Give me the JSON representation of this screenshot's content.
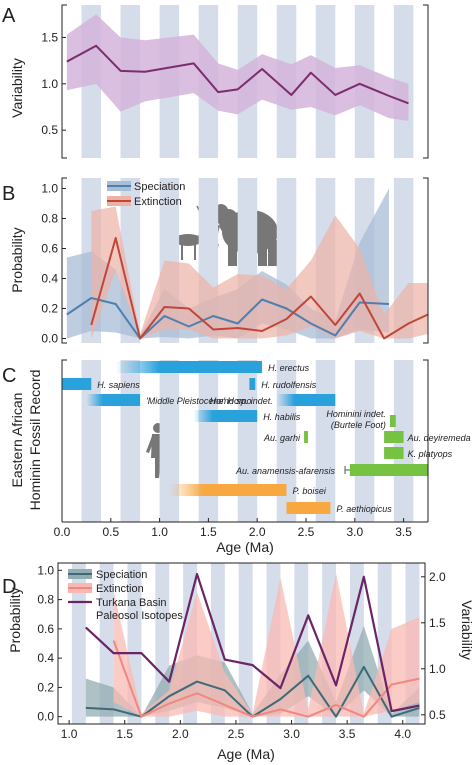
{
  "panels": {
    "a": "A",
    "b": "B",
    "c": "C",
    "d": "D"
  },
  "labels": {
    "variability": "Variability",
    "probability": "Probability",
    "fossil_record": [
      "Eastern African",
      "Hominin Fossil Record"
    ],
    "age": "Age (Ma)"
  },
  "colors": {
    "purple": "#7d2c6e",
    "purple_band": "#d4b4da",
    "blue": "#4f7fae",
    "blue_band": "#a8bed6",
    "red": "#c0463a",
    "red_band": "#ecb2a6",
    "bar_blue": "#29a2dc",
    "bar_green": "#76c242",
    "bar_orange": "#f7a840",
    "stripe": "#d5dcea",
    "d_spec": "#3d6a78",
    "d_spec_band": "#93acb0",
    "d_ext": "#f2877f",
    "d_ext_band": "#f9b9b3",
    "d_turk": "#6b2465"
  },
  "chart_data": [
    {
      "panel": "A",
      "type": "line",
      "ylabel": "Variability",
      "xlim": [
        0,
        3.75
      ],
      "ylim": [
        0.2,
        1.85
      ],
      "yticks": [
        "0.5",
        "1.0",
        "1.5"
      ],
      "x": [
        0.05,
        0.35,
        0.6,
        0.85,
        1.35,
        1.6,
        1.8,
        2.05,
        2.35,
        2.55,
        2.8,
        3.05,
        3.35,
        3.55
      ],
      "series": [
        {
          "values": [
            1.24,
            1.41,
            1.14,
            1.13,
            1.22,
            0.91,
            0.94,
            1.16,
            0.88,
            1.12,
            0.88,
            1.0,
            0.87,
            0.79
          ],
          "lower": [
            0.93,
            1.0,
            0.7,
            0.81,
            0.9,
            0.71,
            0.67,
            0.83,
            0.72,
            0.75,
            0.66,
            0.77,
            0.63,
            0.6
          ],
          "upper": [
            1.53,
            1.75,
            1.5,
            1.47,
            1.53,
            1.22,
            1.15,
            1.32,
            1.21,
            1.31,
            1.17,
            1.2,
            1.07,
            1.0
          ]
        }
      ],
      "grid": "vertical bands"
    },
    {
      "panel": "B",
      "type": "line",
      "ylabel": "Probability",
      "xlim": [
        0,
        3.75
      ],
      "ylim": [
        -0.03,
        1.07
      ],
      "yticks": [
        "0.0",
        "0.2",
        "0.4",
        "0.6",
        "0.8",
        "1.0"
      ],
      "legend_position": "top-left",
      "series": [
        {
          "name": "Speciation",
          "x": [
            0.05,
            0.3,
            0.55,
            0.8,
            1.05,
            1.3,
            1.55,
            1.8,
            2.05,
            2.3,
            2.55,
            2.8,
            3.05,
            3.35
          ],
          "values": [
            0.16,
            0.27,
            0.23,
            0.0,
            0.15,
            0.08,
            0.15,
            0.1,
            0.26,
            0.2,
            0.1,
            0.02,
            0.24,
            0.23
          ],
          "lower": [
            0.0,
            0.05,
            0.04,
            0.0,
            0.01,
            0.0,
            0.02,
            0.0,
            0.1,
            0.06,
            0.0,
            0.0,
            0.06,
            0.04
          ],
          "upper": [
            0.54,
            0.58,
            0.46,
            0.02,
            0.33,
            0.2,
            0.27,
            0.33,
            0.45,
            0.36,
            0.2,
            0.12,
            0.64,
            1.0
          ]
        },
        {
          "name": "Extinction",
          "x": [
            0.3,
            0.55,
            0.8,
            1.05,
            1.3,
            1.55,
            1.8,
            2.05,
            2.3,
            2.55,
            2.8,
            3.05,
            3.3,
            3.55,
            3.75
          ],
          "values": [
            0.09,
            0.67,
            0.0,
            0.21,
            0.2,
            0.06,
            0.07,
            0.05,
            0.13,
            0.28,
            0.09,
            0.3,
            0.0,
            0.1,
            0.16
          ],
          "lower": [
            0.0,
            0.45,
            0.0,
            0.06,
            0.06,
            0.0,
            0.0,
            0.0,
            0.02,
            0.08,
            0.0,
            0.05,
            0.0,
            0.0,
            0.03
          ],
          "upper": [
            0.85,
            0.88,
            0.03,
            0.52,
            0.5,
            0.34,
            0.43,
            0.42,
            0.33,
            0.52,
            0.82,
            0.6,
            0.16,
            0.37,
            0.37
          ]
        }
      ],
      "grid": "vertical bands"
    },
    {
      "panel": "C",
      "type": "timeline",
      "ylabel": "Eastern African Hominin Fossil Record",
      "xlabel": "Age (Ma)",
      "xlim": [
        0,
        3.75
      ],
      "xticks": [
        "0.0",
        "0.5",
        "1.0",
        "1.5",
        "2.0",
        "2.5",
        "3.0",
        "3.5"
      ],
      "taxa": [
        {
          "name": "H. erectus",
          "start": 0.55,
          "end": 2.05,
          "color": "blue",
          "fade_start": true
        },
        {
          "name": "H. sapiens",
          "start": 0.0,
          "end": 0.3,
          "color": "blue"
        },
        {
          "name": "H. rudolfensis",
          "start": 1.92,
          "end": 1.98,
          "color": "blue"
        },
        {
          "name": "'Middle Pleistocene' Homo",
          "start": 0.25,
          "end": 0.8,
          "color": "blue",
          "fade_start": true
        },
        {
          "name": "Homo sp. indet.",
          "start": 2.2,
          "end": 2.8,
          "color": "blue",
          "fade_start": true
        },
        {
          "name": "H. habilis",
          "start": 1.35,
          "end": 2.0,
          "color": "blue",
          "fade_start": true
        },
        {
          "name": "Hominini indet. (Burtele Foot)",
          "start": 3.36,
          "end": 3.42,
          "color": "green"
        },
        {
          "name": "Au. garhi",
          "start": 2.48,
          "end": 2.52,
          "color": "green"
        },
        {
          "name": "Au. deyiremeda",
          "start": 3.3,
          "end": 3.5,
          "color": "green"
        },
        {
          "name": "K. platyops",
          "start": 3.3,
          "end": 3.5,
          "color": "green"
        },
        {
          "name": "Au. anamensis-afarensis",
          "start": 2.95,
          "end": 3.75,
          "color": "green",
          "bracket_start": 2.9
        },
        {
          "name": "P. boisei",
          "start": 1.1,
          "end": 2.3,
          "color": "orange",
          "fade_start": true
        },
        {
          "name": "P. aethiopicus",
          "start": 2.3,
          "end": 2.75,
          "color": "orange"
        }
      ]
    },
    {
      "panel": "D",
      "type": "line",
      "ylabel": "Probability",
      "y2label": "Variability",
      "xlabel": "Age (Ma)",
      "xlim": [
        0.9,
        4.2
      ],
      "xticks": [
        "1.0",
        "1.5",
        "2.0",
        "2.5",
        "3.0",
        "3.5",
        "4.0"
      ],
      "ylim": [
        -0.05,
        1.05
      ],
      "yticks": [
        "0.0",
        "0.2",
        "0.4",
        "0.6",
        "0.8",
        "1.0"
      ],
      "y2lim": [
        0.4,
        2.15
      ],
      "y2ticks": [
        "0.5",
        "1.0",
        "1.5",
        "2.0"
      ],
      "legend_position": "top-left",
      "series": [
        {
          "name": "Speciation",
          "axis": "left",
          "x": [
            1.15,
            1.4,
            1.65,
            1.9,
            2.15,
            2.4,
            2.65,
            2.9,
            3.15,
            3.4,
            3.65,
            3.9,
            4.15
          ],
          "values": [
            0.06,
            0.05,
            0.0,
            0.14,
            0.24,
            0.18,
            0.0,
            0.12,
            0.28,
            0.0,
            0.34,
            0.0,
            0.06
          ],
          "lower": [
            0.0,
            0.0,
            0.0,
            0.04,
            0.1,
            0.06,
            0.0,
            0.02,
            0.14,
            0.0,
            0.18,
            0.0,
            0.0
          ],
          "upper": [
            0.26,
            0.2,
            0.0,
            0.35,
            0.42,
            0.37,
            0.02,
            0.29,
            0.52,
            0.1,
            0.62,
            0.02,
            0.2
          ]
        },
        {
          "name": "Extinction",
          "axis": "left",
          "x": [
            1.4,
            1.65,
            1.9,
            2.15,
            2.4,
            2.65,
            2.9,
            3.15,
            3.4,
            3.65,
            3.9,
            4.15
          ],
          "values": [
            0.52,
            0.0,
            0.09,
            0.16,
            0.08,
            0.0,
            0.05,
            0.0,
            0.08,
            0.0,
            0.22,
            0.26
          ],
          "lower": [
            0.1,
            0.0,
            0.0,
            0.04,
            0.0,
            0.0,
            0.0,
            0.0,
            0.0,
            0.0,
            0.04,
            0.1
          ],
          "upper": [
            0.86,
            0.02,
            0.18,
            0.85,
            0.3,
            0.02,
            0.95,
            0.05,
            0.98,
            0.02,
            0.6,
            0.68
          ]
        },
        {
          "name": "Turkana Basin Paleosol Isotopes",
          "axis": "right",
          "x": [
            1.15,
            1.4,
            1.65,
            1.9,
            2.15,
            2.4,
            2.65,
            2.9,
            3.15,
            3.4,
            3.65,
            3.9,
            4.15
          ],
          "values": [
            1.45,
            1.17,
            1.17,
            0.86,
            2.03,
            1.1,
            1.04,
            0.79,
            1.58,
            0.82,
            2.0,
            0.54,
            0.6
          ]
        }
      ],
      "grid": "vertical bands"
    }
  ]
}
